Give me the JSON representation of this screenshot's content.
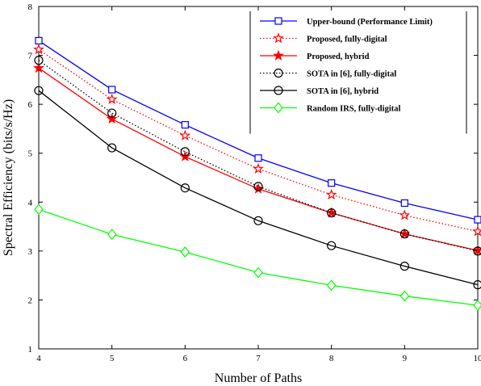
{
  "chart_data": {
    "type": "line",
    "title": "",
    "xlabel": "Number of Paths",
    "ylabel": "Spectral Efficiency (bits/s/Hz)",
    "xlim": [
      4,
      10
    ],
    "ylim": [
      1,
      8
    ],
    "x": [
      4,
      5,
      6,
      7,
      8,
      9,
      10
    ],
    "xticks": [
      "4",
      "5",
      "6",
      "7",
      "8",
      "9",
      "10"
    ],
    "yticks": [
      "1",
      "2",
      "3",
      "4",
      "5",
      "6",
      "7",
      "8"
    ],
    "grid": false,
    "legend_position": "top-right",
    "series": [
      {
        "name": "Upper-bound (Performance Limit)",
        "values": [
          7.3,
          6.3,
          5.58,
          4.9,
          4.39,
          3.98,
          3.64
        ],
        "color": "#0000ff",
        "line": "solid",
        "marker": "square"
      },
      {
        "name": "Proposed, fully-digital",
        "values": [
          7.12,
          6.1,
          5.36,
          4.68,
          4.15,
          3.73,
          3.4
        ],
        "color": "#ff0000",
        "line": "dotted",
        "marker": "star-open"
      },
      {
        "name": "Proposed, hybrid",
        "values": [
          6.74,
          5.7,
          4.93,
          4.27,
          3.78,
          3.35,
          3.01
        ],
        "color": "#ff0000",
        "line": "solid",
        "marker": "star-filled"
      },
      {
        "name": "SOTA in [6], fully-digital",
        "values": [
          6.9,
          5.82,
          5.03,
          4.32,
          3.78,
          3.35,
          3.0
        ],
        "color": "#000000",
        "line": "dotted",
        "marker": "circle"
      },
      {
        "name": "SOTA in [6], hybrid",
        "values": [
          6.28,
          5.11,
          4.29,
          3.62,
          3.11,
          2.69,
          2.31
        ],
        "color": "#000000",
        "line": "solid",
        "marker": "circle"
      },
      {
        "name": "Random IRS, fully-digital",
        "values": [
          3.85,
          3.34,
          2.98,
          2.56,
          2.3,
          2.08,
          1.89
        ],
        "color": "#00ff00",
        "line": "solid",
        "marker": "diamond"
      }
    ]
  }
}
